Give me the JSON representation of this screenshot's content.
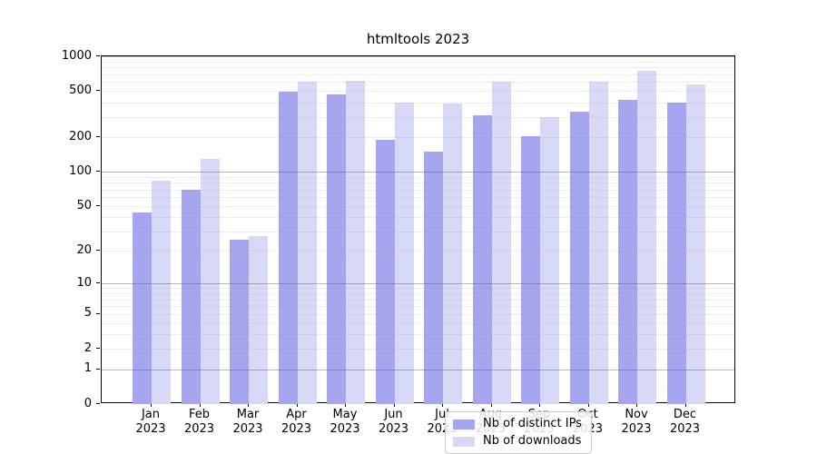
{
  "chart_data": {
    "type": "bar",
    "title": "htmltools 2023",
    "categories": [
      "Jan",
      "Feb",
      "Mar",
      "Apr",
      "May",
      "Jun",
      "Jul",
      "Aug",
      "Sep",
      "Oct",
      "Nov",
      "Dec"
    ],
    "category_year": "2023",
    "series": [
      {
        "name": "Nb of distinct IPs",
        "color": "#a5a5f0",
        "values": [
          44,
          70,
          25,
          495,
          465,
          188,
          150,
          310,
          205,
          330,
          420,
          400
        ]
      },
      {
        "name": "Nb of downloads",
        "color": "#d8d8f7",
        "values": [
          84,
          130,
          27,
          600,
          620,
          395,
          388,
          600,
          300,
          600,
          750,
          575
        ]
      }
    ],
    "xlabel": "",
    "ylabel": "",
    "y_axis": {
      "scale": "log1p",
      "max": 1000,
      "ticks": [
        0,
        1,
        2,
        5,
        10,
        20,
        50,
        100,
        200,
        500,
        1000
      ]
    },
    "grid": {
      "major_lines": [
        1,
        10,
        100,
        1000
      ],
      "minor_multipliers": [
        2,
        3,
        4,
        5,
        6,
        7,
        8,
        9
      ],
      "minor_decades": [
        1,
        10,
        100
      ],
      "grid_on_top_of_bars": true
    },
    "legend_position": "lower center"
  }
}
